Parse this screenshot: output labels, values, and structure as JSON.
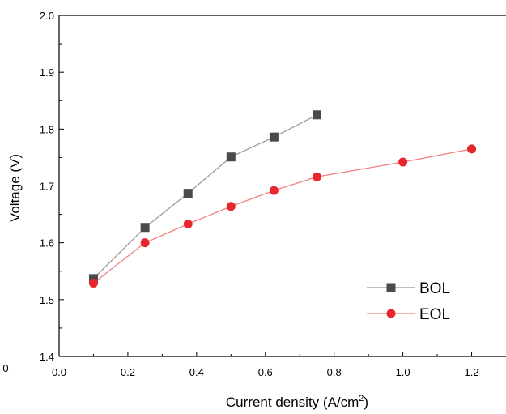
{
  "chart_data": {
    "type": "line",
    "xlabel": "Current density (A/cm",
    "xlabel_sup": "2",
    "xlabel_tail": ")",
    "ylabel": "Voltage (V)",
    "xlim": [
      0.0,
      1.3
    ],
    "ylim": [
      1.4,
      2.0
    ],
    "x_ticks": [
      "0.0",
      "0.2",
      "0.4",
      "0.6",
      "0.8",
      "1.0",
      "1.2"
    ],
    "y_ticks": [
      "1.4",
      "1.5",
      "1.6",
      "1.7",
      "1.8",
      "1.9",
      "2.0"
    ],
    "grid": false,
    "legend_position": "bottom-right",
    "stray_label": "0",
    "series": [
      {
        "name": "BOL",
        "marker": "square",
        "color": "#4a4a4a",
        "line_color": "#9a9a9a",
        "x": [
          0.1,
          0.25,
          0.375,
          0.5,
          0.625,
          0.75
        ],
        "y": [
          1.537,
          1.627,
          1.687,
          1.751,
          1.786,
          1.825
        ]
      },
      {
        "name": "EOL",
        "marker": "circle",
        "color": "#e8262d",
        "line_color": "#f08080",
        "x": [
          0.1,
          0.25,
          0.375,
          0.5,
          0.625,
          0.75,
          1.0,
          1.2
        ],
        "y": [
          1.529,
          1.6,
          1.633,
          1.664,
          1.692,
          1.716,
          1.742,
          1.765
        ]
      }
    ]
  }
}
